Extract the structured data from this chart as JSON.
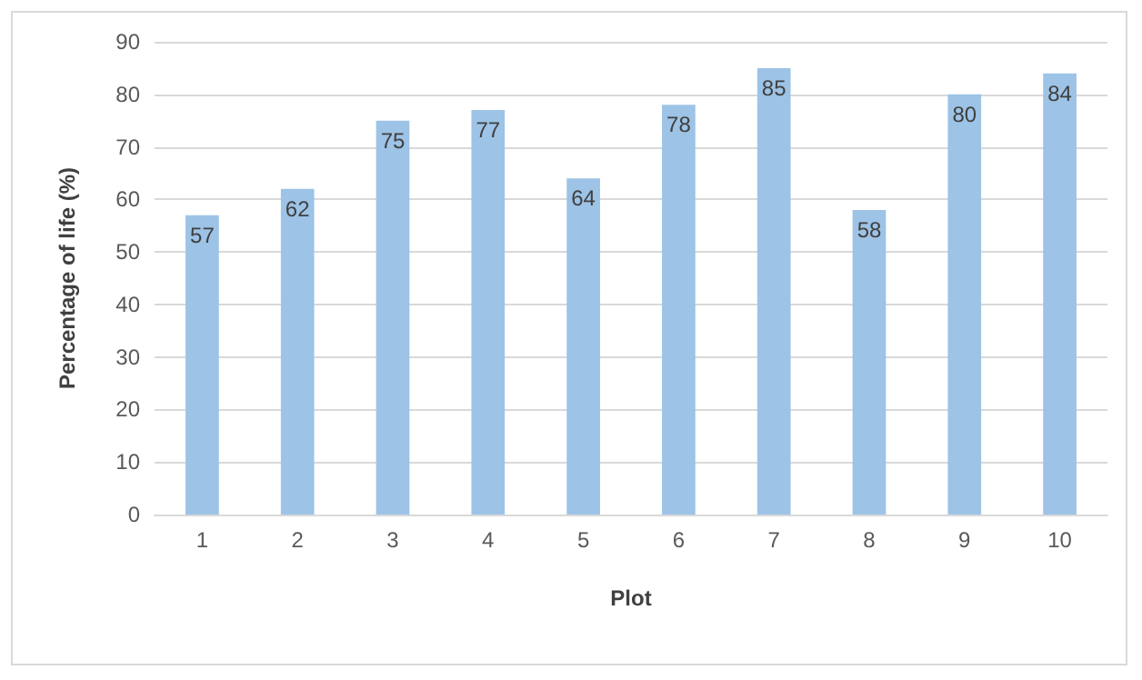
{
  "chart_data": {
    "type": "bar",
    "xlabel": "Plot",
    "ylabel": "Percentage of life (%)",
    "categories": [
      "1",
      "2",
      "3",
      "4",
      "5",
      "6",
      "7",
      "8",
      "9",
      "10"
    ],
    "values": [
      57,
      62,
      75,
      77,
      64,
      78,
      85,
      58,
      80,
      84
    ],
    "color": "#9dc3e6",
    "ylim": [
      0,
      90
    ],
    "yticks": [
      0,
      10,
      20,
      30,
      40,
      50,
      60,
      70,
      80,
      90
    ],
    "grid": "y",
    "data_labels": true
  }
}
